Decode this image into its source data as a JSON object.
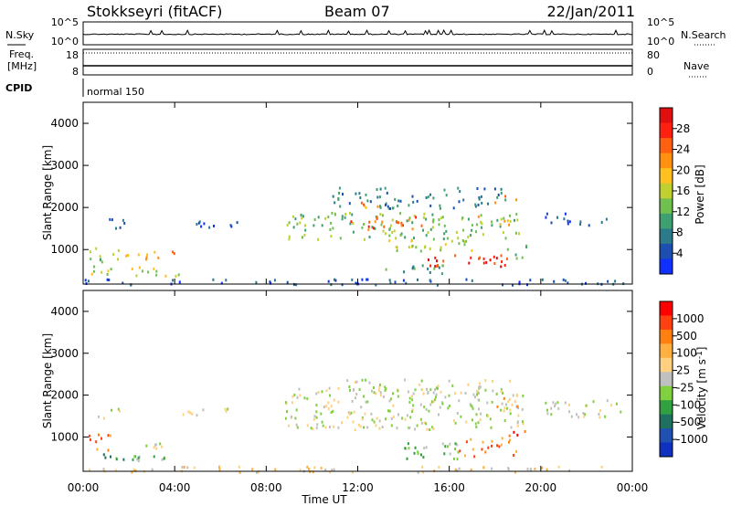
{
  "header": {
    "station": "Stokkseyri (fitACF)",
    "beam": "Beam 07",
    "date": "22/Jan/2011"
  },
  "side_labels": {
    "nsky": "N.Sky",
    "freq_line1": "Freq.",
    "freq_line2": "[MHz]",
    "cpid": "CPID",
    "nsearch": "N.Search",
    "nave": "Nave"
  },
  "noise_panel": {
    "left_ticks": [
      "10^5",
      "10^0"
    ],
    "right_ticks": [
      "10^5",
      "10^0"
    ]
  },
  "freq_panel": {
    "left_ticks": [
      "18",
      "8"
    ],
    "right_ticks": [
      "80",
      "0"
    ]
  },
  "cpid_panel": {
    "label": "normal 150"
  },
  "chart_data": [
    {
      "type": "heatmap",
      "name": "power",
      "ylabel": "Slant Range [km]",
      "xlabel": "Time UT",
      "x_ticks": [
        "00:00",
        "04:00",
        "08:00",
        "12:00",
        "16:00",
        "20:00",
        "00:00"
      ],
      "y_ticks": [
        "1000",
        "2000",
        "3000",
        "4000"
      ],
      "ylim": [
        180,
        4500
      ],
      "colorbar": {
        "label": "Power [dB]",
        "ticks": [
          "4",
          "8",
          "12",
          "16",
          "20",
          "24",
          "28"
        ],
        "colors": [
          "#1030ff",
          "#1c4fb0",
          "#2a7a8a",
          "#3ea070",
          "#70c050",
          "#c0d030",
          "#ffc020",
          "#ff9010",
          "#ff6010",
          "#ff2010",
          "#e01010"
        ]
      },
      "regions": [
        {
          "t0": 1.0,
          "t1": 1.8,
          "r0": 1500,
          "r1": 1750,
          "level": 1
        },
        {
          "t0": 0.2,
          "t1": 1.6,
          "r0": 700,
          "r1": 1100,
          "level": 4
        },
        {
          "t0": 1.6,
          "t1": 2.7,
          "r0": 750,
          "r1": 950,
          "level": 6
        },
        {
          "t0": 2.7,
          "t1": 4.1,
          "r0": 800,
          "r1": 1000,
          "level": 7
        },
        {
          "t0": 0.3,
          "t1": 4.5,
          "r0": 350,
          "r1": 650,
          "level": 5
        },
        {
          "t0": 4.3,
          "t1": 6.8,
          "r0": 1550,
          "r1": 1700,
          "level": 1
        },
        {
          "t0": 8.8,
          "t1": 19.2,
          "r0": 1250,
          "r1": 1900,
          "level": 4
        },
        {
          "t0": 11.6,
          "t1": 14.8,
          "r0": 1500,
          "r1": 1800,
          "level": 8
        },
        {
          "t0": 11.8,
          "t1": 13.0,
          "r0": 2000,
          "r1": 2250,
          "level": 7
        },
        {
          "t0": 10.8,
          "t1": 18.5,
          "r0": 2000,
          "r1": 2500,
          "level": 2
        },
        {
          "t0": 13.0,
          "t1": 17.0,
          "r0": 900,
          "r1": 1300,
          "level": 5
        },
        {
          "t0": 15.0,
          "t1": 18.9,
          "r0": 600,
          "r1": 900,
          "level": 9
        },
        {
          "t0": 13.0,
          "t1": 16.5,
          "r0": 450,
          "r1": 650,
          "level": 3
        },
        {
          "t0": 17.8,
          "t1": 19.0,
          "r0": 2100,
          "r1": 2300,
          "level": 8
        },
        {
          "t0": 17.0,
          "t1": 18.6,
          "r0": 1600,
          "r1": 1850,
          "level": 6
        },
        {
          "t0": 18.0,
          "t1": 19.4,
          "r0": 800,
          "r1": 1150,
          "level": 3
        },
        {
          "t0": 20.0,
          "t1": 21.3,
          "r0": 1600,
          "r1": 1900,
          "level": 1
        },
        {
          "t0": 21.5,
          "t1": 23.2,
          "r0": 1600,
          "r1": 1800,
          "level": 1
        },
        {
          "t0": 0.0,
          "t1": 24.0,
          "r0": 180,
          "r1": 320,
          "level": 1
        }
      ]
    },
    {
      "type": "heatmap",
      "name": "velocity",
      "ylabel": "Slant Range [km]",
      "xlabel": "Time UT",
      "x_ticks": [
        "00:00",
        "04:00",
        "08:00",
        "12:00",
        "16:00",
        "20:00",
        "00:00"
      ],
      "y_ticks": [
        "1000",
        "2000",
        "3000",
        "4000"
      ],
      "ylim": [
        180,
        4500
      ],
      "colorbar": {
        "label": "Velocity [m s^-1]",
        "ticks": [
          "1000",
          "500",
          "100",
          "25",
          "-25",
          "-100",
          "-500",
          "-1000"
        ],
        "colors": [
          "#1030c0",
          "#2050b0",
          "#207060",
          "#30a040",
          "#80d040",
          "#c0c0c0",
          "#ffd080",
          "#ffb040",
          "#ff8010",
          "#ff4010",
          "#ff0000"
        ]
      },
      "regions": [
        {
          "t0": 0.2,
          "t1": 1.2,
          "r0": 650,
          "r1": 1100,
          "level": 8
        },
        {
          "t0": 0.5,
          "t1": 2.3,
          "r0": 400,
          "r1": 650,
          "level": 3
        },
        {
          "t0": 2.3,
          "t1": 3.9,
          "r0": 400,
          "r1": 600,
          "level": 4
        },
        {
          "t0": 2.7,
          "t1": 4.0,
          "r0": 750,
          "r1": 1000,
          "level": 5
        },
        {
          "t0": 0.6,
          "t1": 1.6,
          "r0": 1450,
          "r1": 1700,
          "level": 5
        },
        {
          "t0": 4.3,
          "t1": 6.8,
          "r0": 1550,
          "r1": 1700,
          "level": 5
        },
        {
          "t0": 8.8,
          "t1": 19.2,
          "r0": 1200,
          "r1": 2200,
          "level": 5
        },
        {
          "t0": 11.5,
          "t1": 18.7,
          "r0": 2000,
          "r1": 2400,
          "level": 5
        },
        {
          "t0": 14.0,
          "t1": 16.8,
          "r0": 500,
          "r1": 900,
          "level": 4
        },
        {
          "t0": 16.3,
          "t1": 19.0,
          "r0": 550,
          "r1": 1000,
          "level": 8
        },
        {
          "t0": 18.5,
          "t1": 19.4,
          "r0": 850,
          "r1": 1300,
          "level": 9
        },
        {
          "t0": 18.0,
          "t1": 19.0,
          "r0": 1550,
          "r1": 2000,
          "level": 7
        },
        {
          "t0": 20.0,
          "t1": 23.5,
          "r0": 1500,
          "r1": 1900,
          "level": 5
        },
        {
          "t0": 0.0,
          "t1": 24.0,
          "r0": 180,
          "r1": 320,
          "level": 6
        }
      ]
    }
  ],
  "colors": {
    "axis": "#000000",
    "background": "#ffffff"
  }
}
